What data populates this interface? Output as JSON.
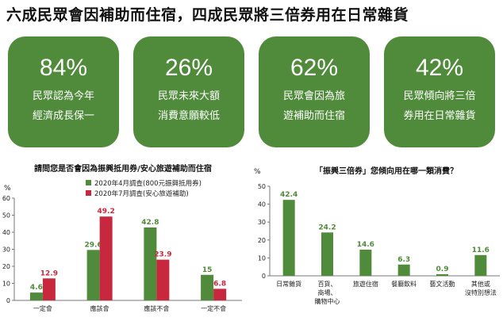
{
  "headline": "六成民眾會因補助而住宿，四成民眾將三倍券用在日常雜貨",
  "accent_color": "#4f8b3a",
  "cards": [
    {
      "pct": "84%",
      "line1": "民眾認為今年",
      "line2": "經濟成長保一"
    },
    {
      "pct": "26%",
      "line1": "民眾未來大額",
      "line2": "消費意願較低"
    },
    {
      "pct": "62%",
      "line1": "民眾會因為旅",
      "line2": "遊補助而住宿"
    },
    {
      "pct": "42%",
      "line1": "民眾傾向將三倍",
      "line2": "券用在日常雜貨"
    }
  ],
  "chart_data": [
    {
      "type": "bar",
      "title": "請問您是否會因為振興抵用券/安心旅遊補助而住宿",
      "ylabel": "%",
      "ylim": [
        0,
        60
      ],
      "yticks": [
        0,
        10,
        20,
        30,
        40,
        50,
        60
      ],
      "categories": [
        "一定會",
        "應該會",
        "應該不會",
        "一定不會"
      ],
      "series": [
        {
          "name": "2020年4月調查(800元振興抵用券)",
          "color": "#4f8b3a",
          "values": [
            4.6,
            29.6,
            42.8,
            15
          ],
          "labels": [
            "4.6",
            "29.6",
            "42.8",
            "15"
          ]
        },
        {
          "name": "2020年7月調查(安心旅遊補助)",
          "color": "#c8283e",
          "values": [
            12.9,
            49.2,
            23.9,
            6.8
          ],
          "labels": [
            "12.9",
            "49.2",
            "23.9",
            "6.8"
          ]
        }
      ],
      "legend": "top-right",
      "grid": false
    },
    {
      "type": "bar",
      "title": "「振興三倍券」您傾向用在哪一類消費？",
      "ylabel": "%",
      "ylim": [
        0,
        50
      ],
      "yticks": [
        0,
        10,
        20,
        30,
        40,
        50
      ],
      "categories": [
        [
          "日常雜貨"
        ],
        [
          "百貨、",
          "商場、",
          "購物中心"
        ],
        [
          "旅遊住宿"
        ],
        [
          "餐廳飲料"
        ],
        [
          "藝文活動"
        ],
        [
          "其他或",
          "沒特別想法"
        ]
      ],
      "series": [
        {
          "color": "#4f8b3a",
          "values": [
            42.4,
            24.2,
            14.6,
            6.3,
            0.9,
            11.6
          ],
          "labels": [
            "42.4",
            "24.2",
            "14.6",
            "6.3",
            "0.9",
            "11.6"
          ]
        }
      ],
      "grid": false
    }
  ]
}
